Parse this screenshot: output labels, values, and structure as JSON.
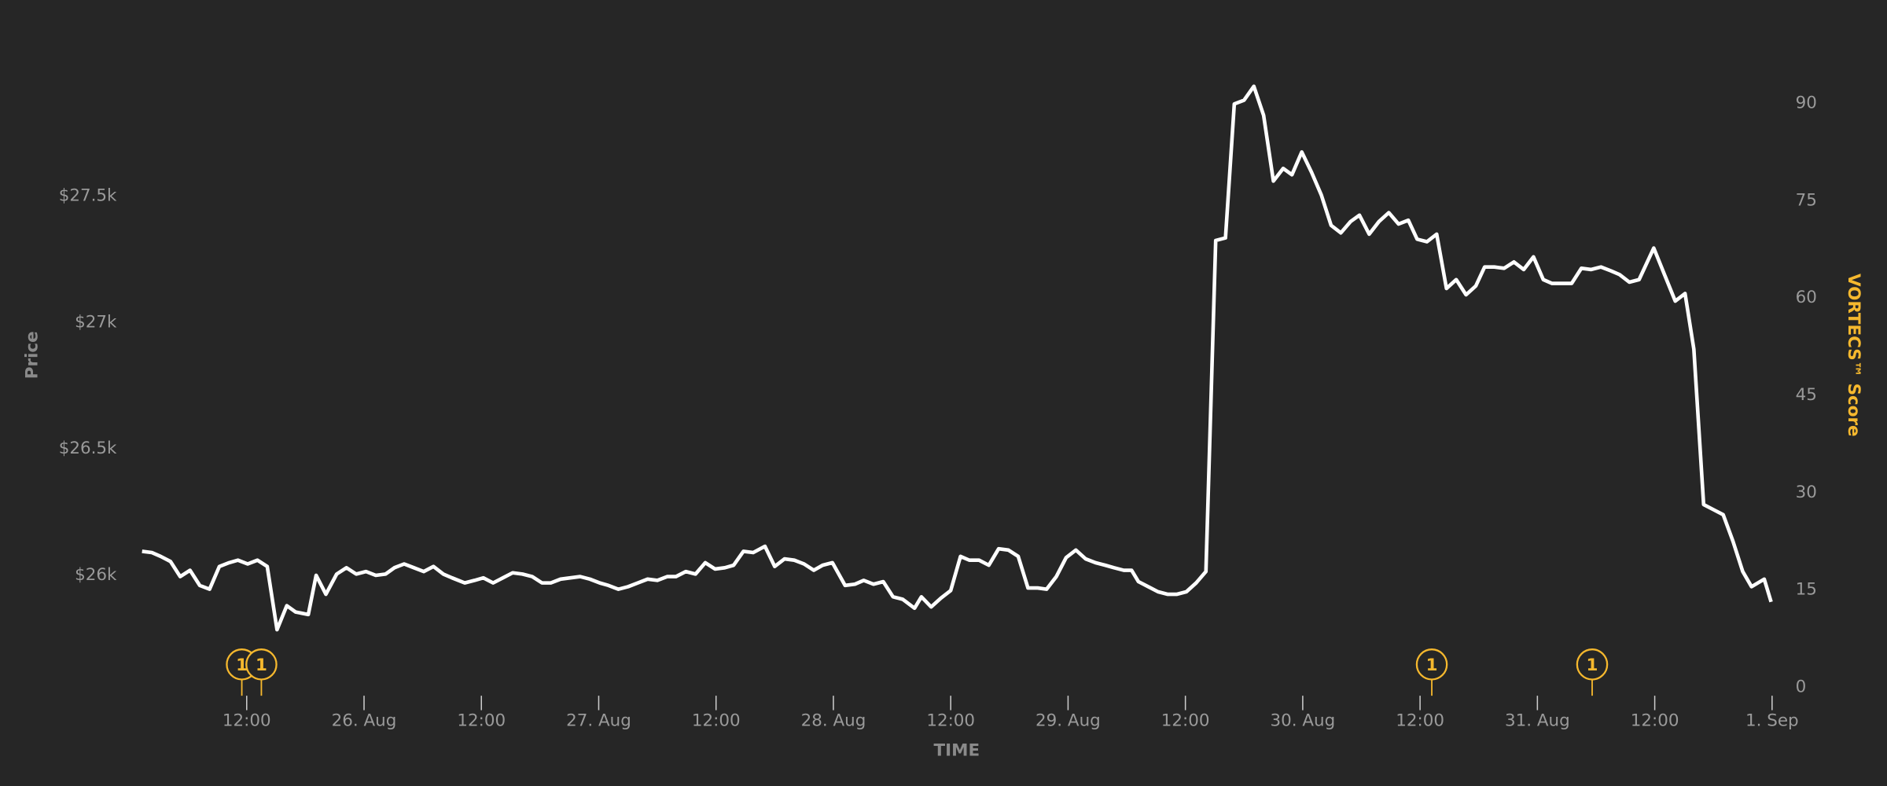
{
  "chart_data": {
    "type": "line",
    "y_label": "Price",
    "y2_label": "VORTECS™ Score",
    "x_label": "TIME",
    "xlim": [
      0,
      168
    ],
    "xticks": [
      {
        "value": 12,
        "label": "12:00"
      },
      {
        "value": 24,
        "label": "26. Aug"
      },
      {
        "value": 36,
        "label": "12:00"
      },
      {
        "value": 48,
        "label": "27. Aug"
      },
      {
        "value": 60,
        "label": "12:00"
      },
      {
        "value": 72,
        "label": "28. Aug"
      },
      {
        "value": 84,
        "label": "12:00"
      },
      {
        "value": 96,
        "label": "29. Aug"
      },
      {
        "value": 108,
        "label": "12:00"
      },
      {
        "value": 120,
        "label": "30. Aug"
      },
      {
        "value": 132,
        "label": "12:00"
      },
      {
        "value": 144,
        "label": "31. Aug"
      },
      {
        "value": 156,
        "label": "12:00"
      },
      {
        "value": 168,
        "label": "1. Sep"
      }
    ],
    "ylim": [
      25557,
      28124
    ],
    "yticks": [
      {
        "value": 26000,
        "label": "$26k"
      },
      {
        "value": 26500,
        "label": "$26.5k"
      },
      {
        "value": 27000,
        "label": "$27k"
      },
      {
        "value": 27500,
        "label": "$27.5k"
      }
    ],
    "y2lim": [
      0,
      100
    ],
    "y2ticks": [
      0,
      15,
      30,
      45,
      60,
      75,
      90
    ],
    "series": [
      {
        "color": "#ffffff",
        "x": [
          1.3,
          2.3,
          3.2,
          4.2,
          5.2,
          6.2,
          7.2,
          8.2,
          9.2,
          10.2,
          11.1,
          12.1,
          13.1,
          14.1,
          15.1,
          16.1,
          17.0,
          18.3,
          19.1,
          20.1,
          21.2,
          22.2,
          23.2,
          24.2,
          25.2,
          26.2,
          27.1,
          28.1,
          29.1,
          30.1,
          31.1,
          32.1,
          33.0,
          34.3,
          35.3,
          36.2,
          37.2,
          38.2,
          39.2,
          40.2,
          41.2,
          42.2,
          43.1,
          44.1,
          45.1,
          46.1,
          47.1,
          48.1,
          49.0,
          50.0,
          51.0,
          52.0,
          53.0,
          54.0,
          55.0,
          55.9,
          56.9,
          57.9,
          58.9,
          59.9,
          60.9,
          61.8,
          62.8,
          63.8,
          65.0,
          66.0,
          67.0,
          68.0,
          69.0,
          70.0,
          70.9,
          71.9,
          73.2,
          74.2,
          75.1,
          76.1,
          77.1,
          78.1,
          79.1,
          80.3,
          81.0,
          82.0,
          83.0,
          84.0,
          85.0,
          85.9,
          86.9,
          87.9,
          88.9,
          89.9,
          90.9,
          91.9,
          92.9,
          93.8,
          94.8,
          95.8,
          96.8,
          97.8,
          98.8,
          99.8,
          100.7,
          101.7,
          102.5,
          103.2,
          104.2,
          105.2,
          106.2,
          107.1,
          108.1,
          109.1,
          110.1,
          111.1,
          112.1,
          113.0,
          114.0,
          115.0,
          116.0,
          117.0,
          118.0,
          118.9,
          119.9,
          120.9,
          121.9,
          122.9,
          123.9,
          124.9,
          125.8,
          126.8,
          127.8,
          128.8,
          129.8,
          130.8,
          131.7,
          132.7,
          133.7,
          134.7,
          135.7,
          136.7,
          137.7,
          138.6,
          139.6,
          140.6,
          141.6,
          142.6,
          143.6,
          144.6,
          145.5,
          146.5,
          147.5,
          148.5,
          149.5,
          150.5,
          151.5,
          152.4,
          153.4,
          154.4,
          155.9,
          157.1,
          158.1,
          159.1,
          160.0,
          161.0,
          162.0,
          163.0,
          164.0,
          165.0,
          165.9,
          167.2,
          167.9
        ],
        "values": [
          26095,
          26090,
          26075,
          26055,
          25995,
          26020,
          25960,
          25945,
          26035,
          26050,
          26060,
          26045,
          26060,
          26035,
          25785,
          25880,
          25855,
          25845,
          26000,
          25925,
          26005,
          26030,
          26005,
          26015,
          26000,
          26005,
          26030,
          26045,
          26030,
          26015,
          26035,
          26005,
          25990,
          25970,
          25980,
          25990,
          25970,
          25990,
          26010,
          26005,
          25995,
          25970,
          25970,
          25985,
          25990,
          25995,
          25985,
          25970,
          25960,
          25945,
          25955,
          25970,
          25985,
          25980,
          25995,
          25995,
          26015,
          26005,
          26050,
          26025,
          26030,
          26040,
          26095,
          26090,
          26115,
          26035,
          26065,
          26060,
          26045,
          26020,
          26040,
          26050,
          25960,
          25965,
          25980,
          25965,
          25975,
          25915,
          25905,
          25870,
          25915,
          25875,
          25910,
          25940,
          26075,
          26060,
          26060,
          26040,
          26105,
          26100,
          26075,
          25950,
          25950,
          25945,
          25995,
          26070,
          26100,
          26065,
          26050,
          26040,
          26030,
          26020,
          26020,
          25975,
          25955,
          25935,
          25925,
          25925,
          25935,
          25970,
          26015,
          27325,
          27335,
          27865,
          27880,
          27935,
          27820,
          27560,
          27610,
          27585,
          27675,
          27595,
          27505,
          27385,
          27355,
          27400,
          27425,
          27350,
          27400,
          27435,
          27390,
          27405,
          27330,
          27320,
          27350,
          27135,
          27170,
          27110,
          27145,
          27220,
          27220,
          27215,
          27240,
          27210,
          27260,
          27170,
          27155,
          27155,
          27155,
          27215,
          27210,
          27220,
          27205,
          27190,
          27160,
          27170,
          27295,
          27180,
          27085,
          27115,
          26895,
          26280,
          26260,
          26240,
          26135,
          26015,
          25955,
          25985,
          25895
        ]
      }
    ],
    "flags": [
      {
        "x": 11.5,
        "label": "1"
      },
      {
        "x": 13.5,
        "label": "1"
      },
      {
        "x": 133.2,
        "label": "1"
      },
      {
        "x": 149.6,
        "label": "1"
      }
    ],
    "flag_color": "#f5b82e",
    "y2_color": "#f5b82e"
  }
}
